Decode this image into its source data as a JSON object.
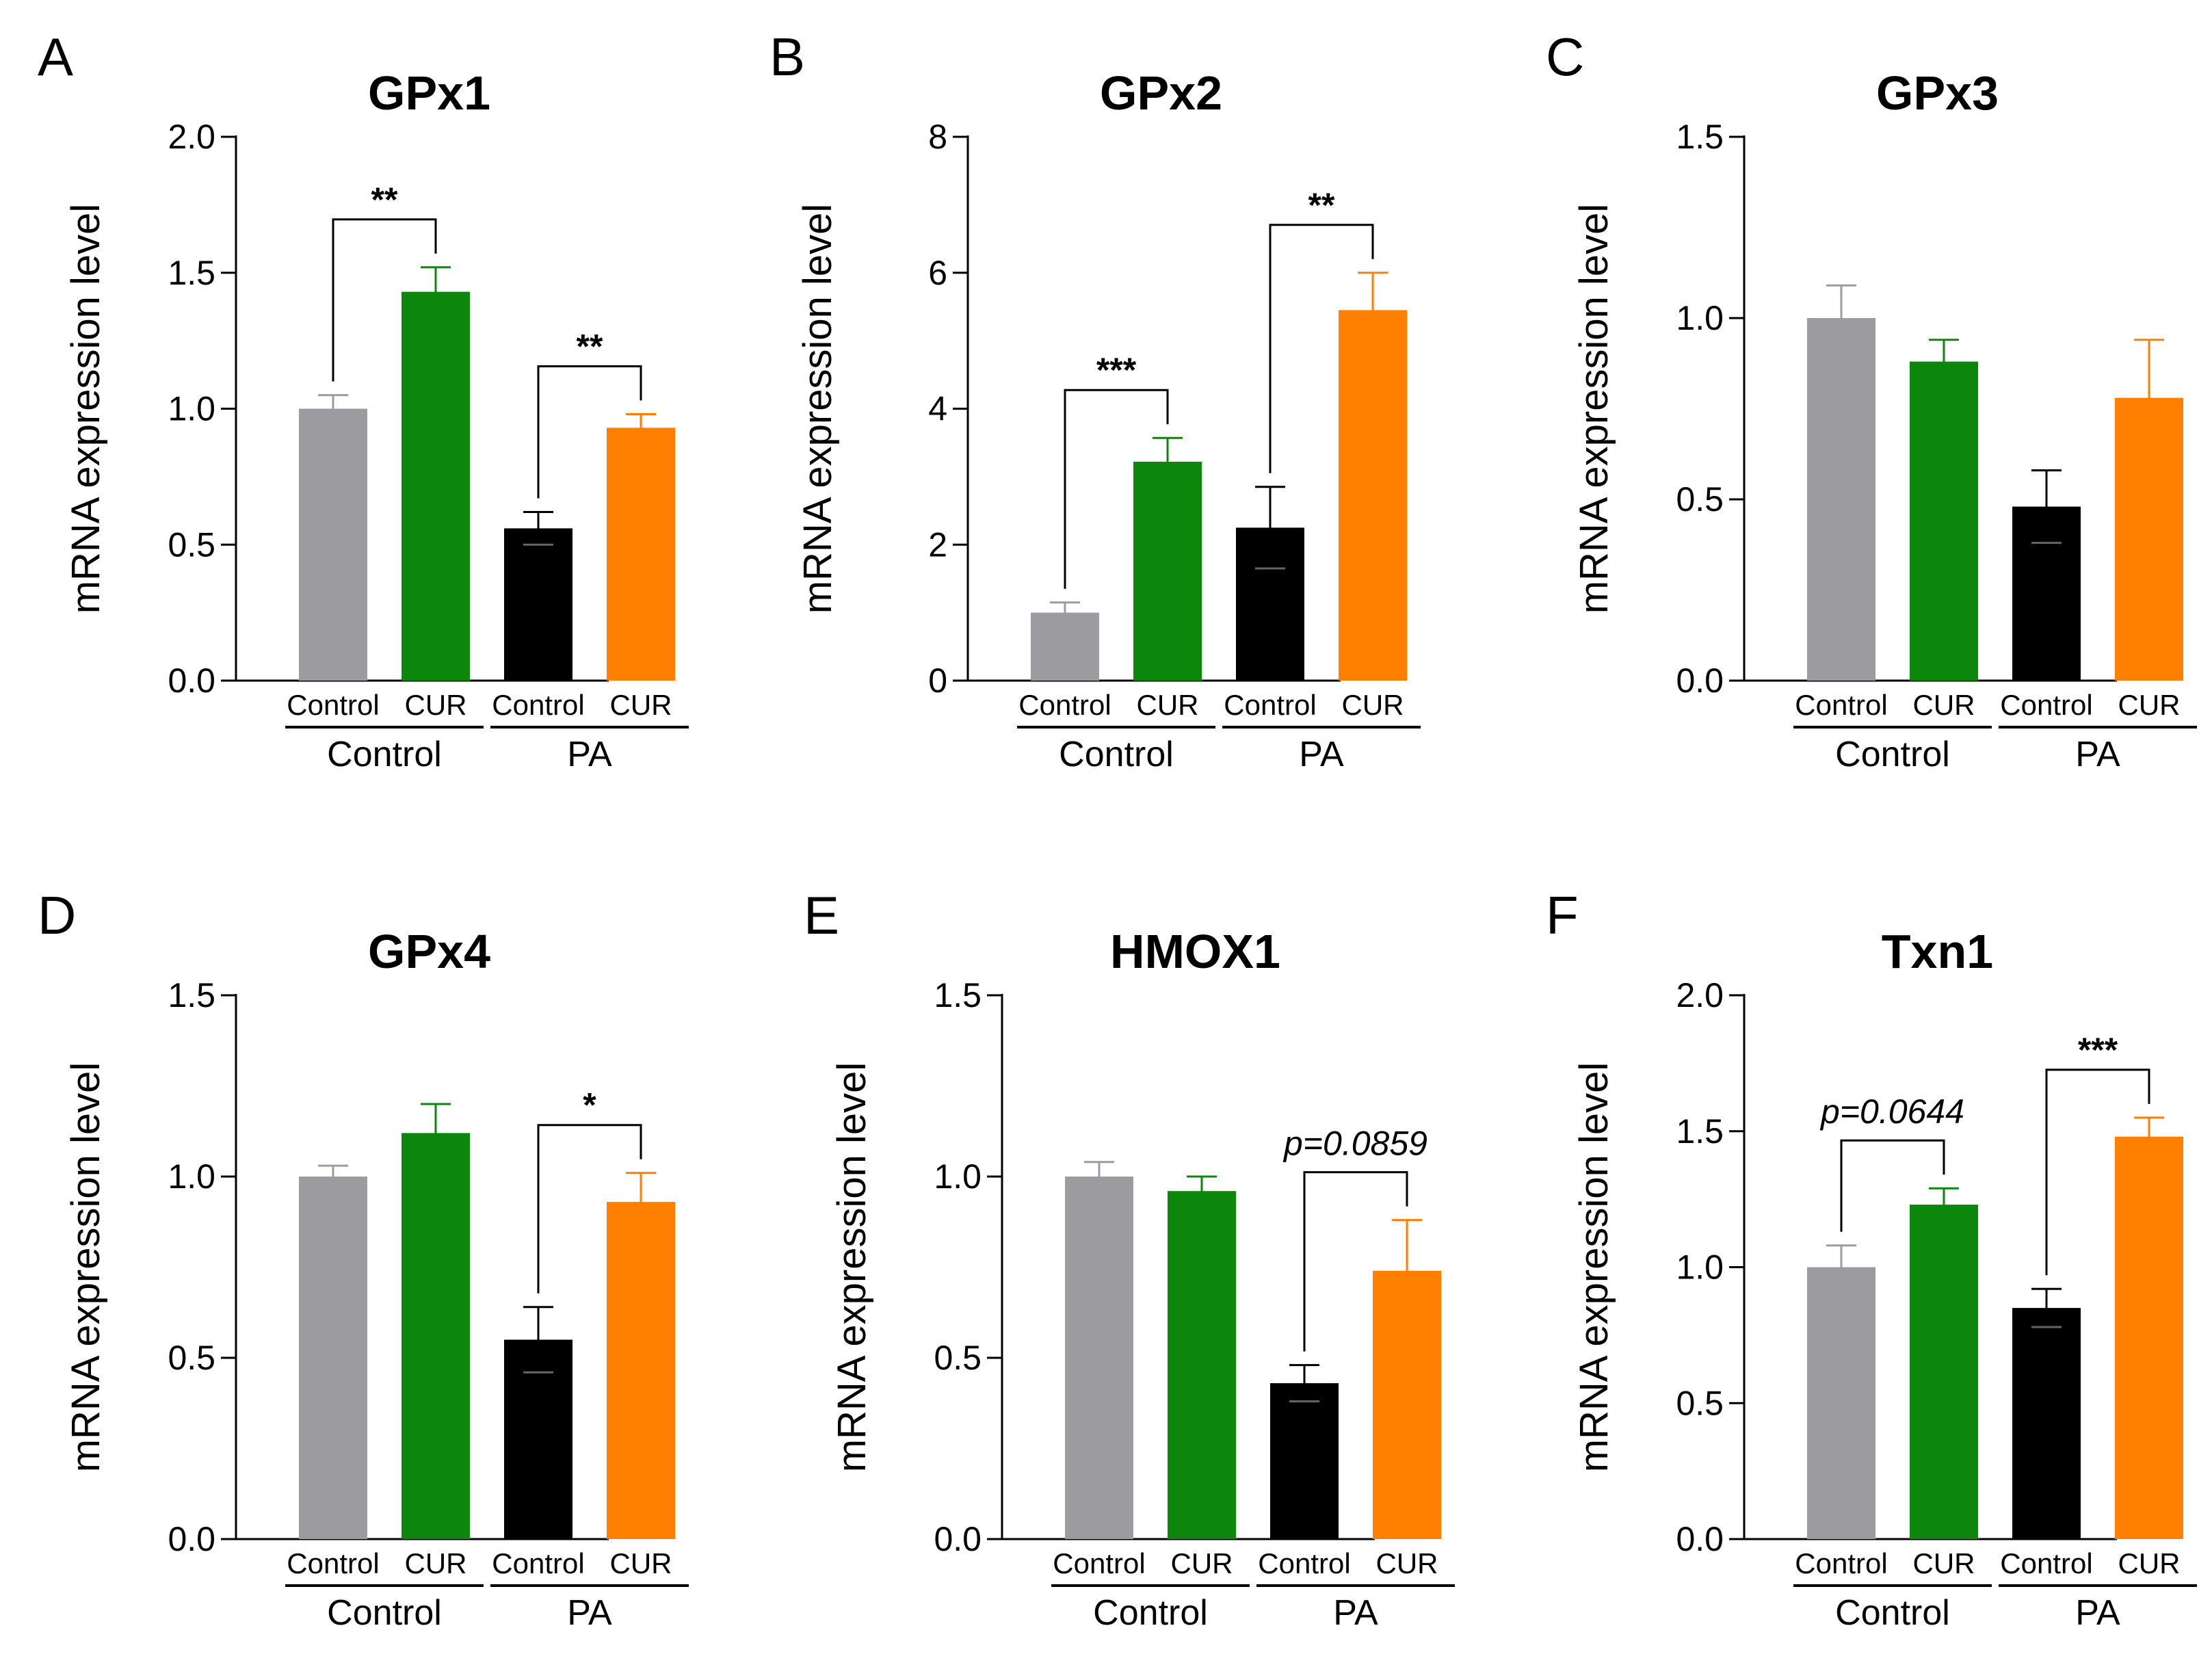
{
  "figure": {
    "group_labels": [
      "Control",
      "PA"
    ],
    "categories": [
      "Control",
      "CUR",
      "Control",
      "CUR"
    ],
    "colors": [
      "#9b9ba0",
      "#0c870c",
      "#000000",
      "#ff8000"
    ]
  },
  "chart_data": [
    {
      "panel": "A",
      "type": "bar",
      "title": "GPx1",
      "ylabel": "mRNA expression level",
      "ylim": [
        0,
        2.0
      ],
      "yticks": [
        "0.0",
        "0.5",
        "1.0",
        "1.5",
        "2.0"
      ],
      "values": [
        1.0,
        1.43,
        0.56,
        0.93
      ],
      "errors": [
        0.05,
        0.09,
        0.06,
        0.05
      ],
      "annotations": [
        {
          "from": 0,
          "to": 1,
          "label": "**"
        },
        {
          "from": 2,
          "to": 3,
          "label": "**"
        }
      ]
    },
    {
      "panel": "B",
      "type": "bar",
      "title": "GPx2",
      "ylabel": "mRNA expression level",
      "ylim": [
        0,
        8
      ],
      "yticks": [
        "0",
        "2",
        "4",
        "6",
        "8"
      ],
      "values": [
        1.0,
        3.22,
        2.25,
        5.45
      ],
      "errors": [
        0.15,
        0.35,
        0.6,
        0.55
      ],
      "annotations": [
        {
          "from": 0,
          "to": 1,
          "label": "***"
        },
        {
          "from": 2,
          "to": 3,
          "label": "**"
        }
      ]
    },
    {
      "panel": "C",
      "type": "bar",
      "title": "GPx3",
      "ylabel": "mRNA expression level",
      "ylim": [
        0,
        1.5
      ],
      "yticks": [
        "0.0",
        "0.5",
        "1.0",
        "1.5"
      ],
      "values": [
        1.0,
        0.88,
        0.48,
        0.78
      ],
      "errors": [
        0.09,
        0.06,
        0.1,
        0.16
      ],
      "annotations": []
    },
    {
      "panel": "D",
      "type": "bar",
      "title": "GPx4",
      "ylabel": "mRNA expression level",
      "ylim": [
        0,
        1.5
      ],
      "yticks": [
        "0.0",
        "0.5",
        "1.0",
        "1.5"
      ],
      "values": [
        1.0,
        1.12,
        0.55,
        0.93
      ],
      "errors": [
        0.03,
        0.08,
        0.09,
        0.08
      ],
      "annotations": [
        {
          "from": 2,
          "to": 3,
          "label": "*"
        }
      ]
    },
    {
      "panel": "E",
      "type": "bar",
      "title": "HMOX1",
      "ylabel": "mRNA expression level",
      "ylim": [
        0,
        1.5
      ],
      "yticks": [
        "0.0",
        "0.5",
        "1.0",
        "1.5"
      ],
      "values": [
        1.0,
        0.96,
        0.43,
        0.74
      ],
      "errors": [
        0.04,
        0.04,
        0.05,
        0.14
      ],
      "annotations": [
        {
          "from": 2,
          "to": 3,
          "label": "p=0.0859"
        }
      ]
    },
    {
      "panel": "F",
      "type": "bar",
      "title": "Txn1",
      "ylabel": "mRNA expression level",
      "ylim": [
        0,
        2.0
      ],
      "yticks": [
        "0.0",
        "0.5",
        "1.0",
        "1.5",
        "2.0"
      ],
      "values": [
        1.0,
        1.23,
        0.85,
        1.48
      ],
      "errors": [
        0.08,
        0.06,
        0.07,
        0.07
      ],
      "annotations": [
        {
          "from": 0,
          "to": 1,
          "label": "p=0.0644"
        },
        {
          "from": 2,
          "to": 3,
          "label": "***"
        }
      ]
    }
  ]
}
